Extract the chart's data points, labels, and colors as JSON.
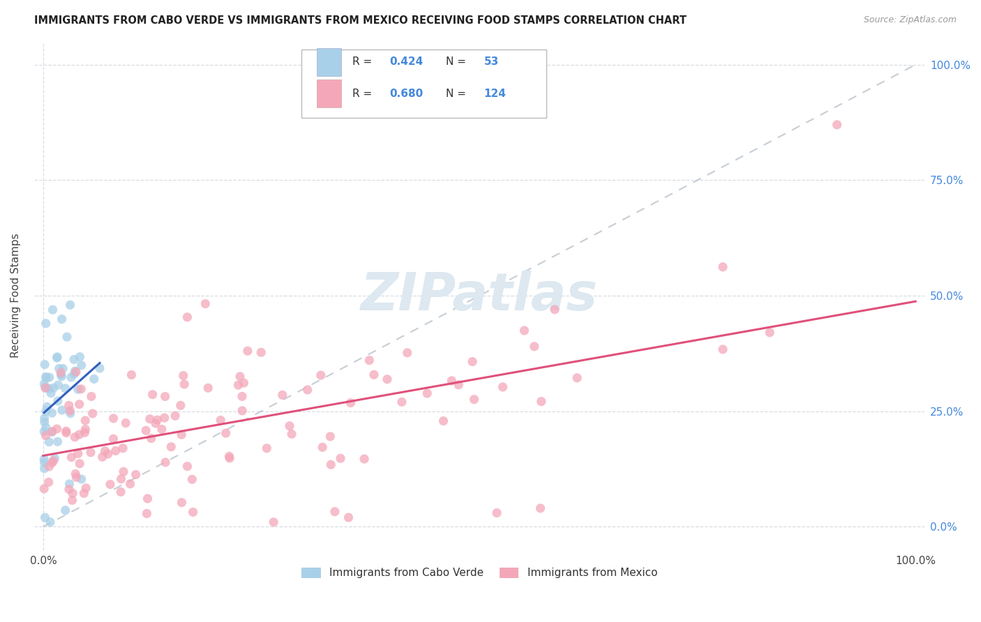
{
  "title": "IMMIGRANTS FROM CABO VERDE VS IMMIGRANTS FROM MEXICO RECEIVING FOOD STAMPS CORRELATION CHART",
  "source": "Source: ZipAtlas.com",
  "ylabel": "Receiving Food Stamps",
  "legend1_label": "Immigrants from Cabo Verde",
  "legend2_label": "Immigrants from Mexico",
  "R1": 0.424,
  "N1": 53,
  "R2": 0.68,
  "N2": 124,
  "color_cabo": "#a8d0e8",
  "color_mexico": "#f4a7b9",
  "color_cabo_line": "#3060c0",
  "color_mexico_line": "#e0507a",
  "color_diag": "#c0c8d0",
  "watermark": "ZIPatlas",
  "xmin": 0.0,
  "xmax": 1.0,
  "ymin": 0.0,
  "ymax": 1.0,
  "ytick_vals": [
    0.0,
    0.25,
    0.5,
    0.75,
    1.0
  ],
  "ytick_labels": [
    "0.0%",
    "25.0%",
    "50.0%",
    "75.0%",
    "100.0%"
  ],
  "xtick_edge_labels": [
    "0.0%",
    "100.0%"
  ]
}
